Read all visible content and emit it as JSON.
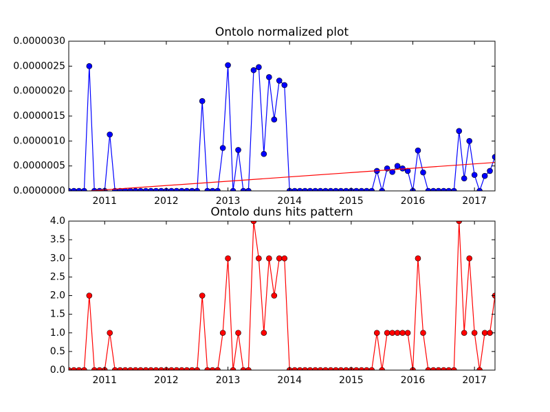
{
  "chart_data": [
    {
      "type": "line",
      "title": "Ontolo normalized plot",
      "x": [
        2010.417,
        2010.5,
        2010.583,
        2010.667,
        2010.75,
        2010.833,
        2010.917,
        2011,
        2011.083,
        2011.167,
        2011.25,
        2011.333,
        2011.417,
        2011.5,
        2011.583,
        2011.667,
        2011.75,
        2011.833,
        2011.917,
        2012,
        2012.083,
        2012.167,
        2012.25,
        2012.333,
        2012.417,
        2012.5,
        2012.583,
        2012.667,
        2012.75,
        2012.833,
        2012.917,
        2013,
        2013.083,
        2013.167,
        2013.25,
        2013.333,
        2013.417,
        2013.5,
        2013.583,
        2013.667,
        2013.75,
        2013.833,
        2013.917,
        2014,
        2014.083,
        2014.167,
        2014.25,
        2014.333,
        2014.417,
        2014.5,
        2014.583,
        2014.667,
        2014.75,
        2014.833,
        2014.917,
        2015,
        2015.083,
        2015.167,
        2015.25,
        2015.333,
        2015.417,
        2015.5,
        2015.583,
        2015.667,
        2015.75,
        2015.833,
        2015.917,
        2016,
        2016.083,
        2016.167,
        2016.25,
        2016.333,
        2016.417,
        2016.5,
        2016.583,
        2016.667,
        2016.75,
        2016.833,
        2016.917,
        2017,
        2017.083,
        2017.167,
        2017.25,
        2017.333
      ],
      "series": [
        {
          "color": "#0000ff",
          "values": [
            0,
            0,
            0,
            0,
            2.5e-06,
            0,
            0,
            0,
            1.13e-06,
            0,
            0,
            0,
            0,
            0,
            0,
            0,
            0,
            0,
            0,
            0,
            0,
            0,
            0,
            0,
            0,
            0,
            1.8e-06,
            0,
            0,
            0,
            8.6e-07,
            2.52e-06,
            0,
            8.2e-07,
            0,
            0,
            2.42e-06,
            2.48e-06,
            7.4e-07,
            2.28e-06,
            1.43e-06,
            2.21e-06,
            2.12e-06,
            0,
            0,
            0,
            0,
            0,
            0,
            0,
            0,
            0,
            0,
            0,
            0,
            0,
            0,
            0,
            0,
            0,
            4e-07,
            0,
            4.5e-07,
            3.8e-07,
            5e-07,
            4.5e-07,
            4e-07,
            0,
            8.1e-07,
            3.7e-07,
            0,
            0,
            0,
            0,
            0,
            0,
            1.2e-06,
            2.5e-07,
            1e-06,
            3.2e-07,
            0,
            3e-07,
            4e-07,
            6.8e-07
          ]
        }
      ],
      "trend": {
        "color": "#ff0000",
        "x": [
          2010.417,
          2017.333
        ],
        "values": [
          -3e-08,
          5.7e-07
        ]
      },
      "xlim": [
        2010.417,
        2017.333
      ],
      "xticks": [
        2011,
        2012,
        2013,
        2014,
        2015,
        2016,
        2017
      ],
      "ylim": [
        0,
        3e-06
      ],
      "yticks": [
        {
          "value": 0,
          "label": "0.0000000"
        },
        {
          "value": 5e-07,
          "label": "0.0000005"
        },
        {
          "value": 1e-06,
          "label": "0.0000010"
        },
        {
          "value": 1.5e-06,
          "label": "0.0000015"
        },
        {
          "value": 2e-06,
          "label": "0.0000020"
        },
        {
          "value": 2.5e-06,
          "label": "0.0000025"
        },
        {
          "value": 3e-06,
          "label": "0.0000030"
        }
      ]
    },
    {
      "type": "line",
      "title": "Ontolo duns hits pattern",
      "x": [
        2010.417,
        2010.5,
        2010.583,
        2010.667,
        2010.75,
        2010.833,
        2010.917,
        2011,
        2011.083,
        2011.167,
        2011.25,
        2011.333,
        2011.417,
        2011.5,
        2011.583,
        2011.667,
        2011.75,
        2011.833,
        2011.917,
        2012,
        2012.083,
        2012.167,
        2012.25,
        2012.333,
        2012.417,
        2012.5,
        2012.583,
        2012.667,
        2012.75,
        2012.833,
        2012.917,
        2013,
        2013.083,
        2013.167,
        2013.25,
        2013.333,
        2013.417,
        2013.5,
        2013.583,
        2013.667,
        2013.75,
        2013.833,
        2013.917,
        2014,
        2014.083,
        2014.167,
        2014.25,
        2014.333,
        2014.417,
        2014.5,
        2014.583,
        2014.667,
        2014.75,
        2014.833,
        2014.917,
        2015,
        2015.083,
        2015.167,
        2015.25,
        2015.333,
        2015.417,
        2015.5,
        2015.583,
        2015.667,
        2015.75,
        2015.833,
        2015.917,
        2016,
        2016.083,
        2016.167,
        2016.25,
        2016.333,
        2016.417,
        2016.5,
        2016.583,
        2016.667,
        2016.75,
        2016.833,
        2016.917,
        2017,
        2017.083,
        2017.167,
        2017.25,
        2017.333
      ],
      "series": [
        {
          "color": "#ff0000",
          "values": [
            0,
            0,
            0,
            0,
            2,
            0,
            0,
            0,
            1,
            0,
            0,
            0,
            0,
            0,
            0,
            0,
            0,
            0,
            0,
            0,
            0,
            0,
            0,
            0,
            0,
            0,
            2,
            0,
            0,
            0,
            1,
            3,
            0,
            1,
            0,
            0,
            4,
            3,
            1,
            3,
            2,
            3,
            3,
            0,
            0,
            0,
            0,
            0,
            0,
            0,
            0,
            0,
            0,
            0,
            0,
            0,
            0,
            0,
            0,
            0,
            1,
            0,
            1,
            1,
            1,
            1,
            1,
            0,
            3,
            1,
            0,
            0,
            0,
            0,
            0,
            0,
            4,
            1,
            3,
            1,
            0,
            1,
            1,
            2
          ]
        }
      ],
      "xlim": [
        2010.417,
        2017.333
      ],
      "xticks": [
        2011,
        2012,
        2013,
        2014,
        2015,
        2016,
        2017
      ],
      "ylim": [
        0,
        4
      ],
      "yticks": [
        {
          "value": 0,
          "label": "0.0"
        },
        0.5,
        {
          "value": 1,
          "label": "1.0"
        },
        1.5,
        {
          "value": 2,
          "label": "2.0"
        },
        2.5,
        {
          "value": 3,
          "label": "3.0"
        },
        3.5,
        {
          "value": 4,
          "label": "4.0"
        }
      ]
    }
  ]
}
